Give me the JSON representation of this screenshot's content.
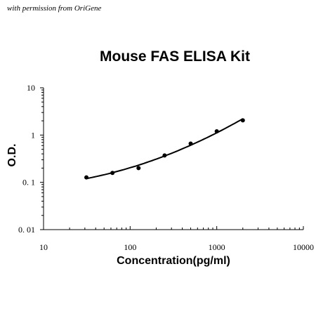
{
  "watermark": "with permission from OriGene",
  "chart_data": {
    "type": "scatter",
    "title": "Mouse FAS ELISA Kit",
    "xlabel": "Concentration(pg/ml)",
    "ylabel": "O.D.",
    "x_scale": "log",
    "y_scale": "log",
    "xlim": [
      10,
      10000
    ],
    "ylim": [
      0.01,
      10
    ],
    "x_ticks": [
      "10",
      "100",
      "1000",
      "10000"
    ],
    "y_ticks": [
      "0. 01",
      "0. 1",
      "1",
      "10"
    ],
    "grid": false,
    "legend": "none",
    "series": [
      {
        "x": [
          31.25,
          62.5,
          125,
          250,
          500,
          1000,
          2000
        ],
        "y": [
          0.127,
          0.158,
          0.2,
          0.37,
          0.66,
          1.2,
          2.05
        ],
        "fit_curve": true,
        "color": "#000000"
      }
    ]
  }
}
